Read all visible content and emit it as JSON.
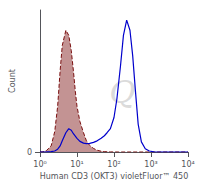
{
  "chart_data": {
    "type": "line",
    "xlabel": "Human CD3 (OKT3) violetFluor™ 450",
    "ylabel": "Count",
    "log": "x",
    "xlim": [
      1.0,
      10000.0
    ],
    "xticks": [
      {
        "value": 1,
        "label": "10⁰"
      },
      {
        "value": 10,
        "label": "10¹"
      },
      {
        "value": 100,
        "label": "10²"
      },
      {
        "value": 1000,
        "label": "10³"
      },
      {
        "value": 10000,
        "label": "10⁴"
      }
    ],
    "ylim": [
      0,
      2800
    ],
    "yticks": [
      0
    ],
    "grid": false,
    "annotations": [
      "Q"
    ],
    "series": [
      {
        "type": "area",
        "color": "#7a1010",
        "line_style": "dashed",
        "x": [
          1.0,
          1.2,
          1.5,
          2.0,
          2.5,
          3.0,
          3.5,
          4.0,
          5.0,
          6.0,
          7.0,
          8.0,
          9.0,
          10.0,
          12.0,
          15.0,
          18.0,
          22.0,
          28.0,
          35.0,
          45.0,
          55.0,
          65.0,
          80.0,
          100.0,
          130.0,
          200.0,
          500.0,
          10000.0
        ],
        "values": [
          0,
          5,
          30,
          120,
          400,
          900,
          1600,
          2100,
          2400,
          2300,
          2000,
          1600,
          1200,
          900,
          600,
          380,
          220,
          130,
          70,
          35,
          15,
          8,
          4,
          2,
          1,
          0,
          0,
          0,
          0
        ]
      },
      {
        "type": "line",
        "color": "#0000cc",
        "line_style": "solid",
        "x": [
          1.0,
          1.5,
          2.0,
          2.5,
          3.0,
          3.5,
          4.0,
          5.0,
          6.0,
          7.0,
          8.0,
          10.0,
          12.0,
          15.0,
          18.0,
          22.0,
          28.0,
          35.0,
          45.0,
          55.0,
          65.0,
          80.0,
          100.0,
          120.0,
          150.0,
          180.0,
          220.0,
          270.0,
          320.0,
          380.0,
          450.0,
          550.0,
          700.0,
          900.0,
          1200.0,
          10000.0
        ],
        "values": [
          0,
          2,
          8,
          20,
          55,
          120,
          220,
          380,
          460,
          430,
          360,
          270,
          210,
          175,
          165,
          170,
          190,
          220,
          270,
          320,
          380,
          460,
          680,
          1050,
          1700,
          2300,
          2600,
          2400,
          1900,
          1200,
          550,
          200,
          65,
          20,
          4,
          0
        ]
      }
    ]
  }
}
